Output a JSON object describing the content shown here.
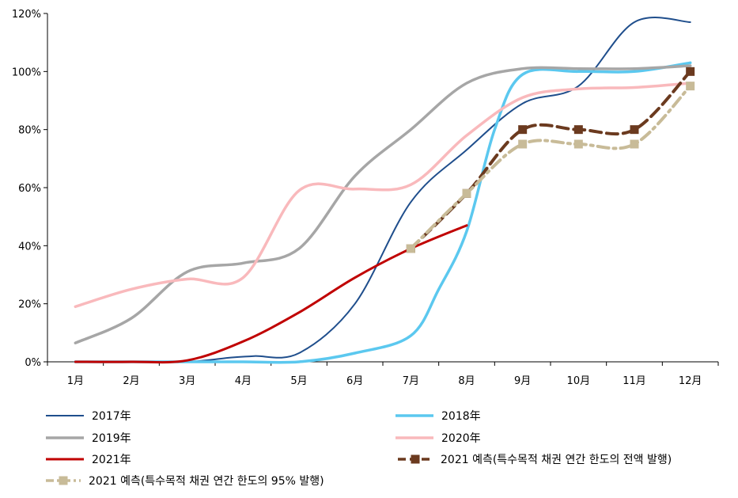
{
  "chart_data": {
    "type": "line",
    "title": "",
    "xlabel": "",
    "ylabel": "",
    "categories": [
      "1月",
      "2月",
      "3月",
      "4月",
      "5月",
      "6月",
      "7月",
      "8月",
      "9月",
      "10月",
      "11月",
      "12月"
    ],
    "y_ticks": [
      "0%",
      "20%",
      "40%",
      "60%",
      "80%",
      "100%",
      "120%"
    ],
    "ylim": [
      0,
      120
    ],
    "grid": false,
    "legend_position": "bottom",
    "series": [
      {
        "name": "2017年",
        "color": "#1f4e8c",
        "style": "solid",
        "width": 2,
        "x": [
          1,
          2,
          3,
          3.8,
          4.2,
          5,
          6,
          7,
          8,
          9,
          10,
          11,
          12
        ],
        "values": [
          0,
          0,
          0,
          1.5,
          2,
          3,
          20,
          55,
          73,
          89,
          95,
          117,
          117
        ]
      },
      {
        "name": "2018年",
        "color": "#5bc8ef",
        "style": "solid",
        "width": 3.5,
        "x": [
          1,
          2,
          3,
          4,
          5,
          6,
          7,
          7.5,
          8,
          8.5,
          9,
          10,
          11,
          12
        ],
        "values": [
          0,
          0,
          0,
          0,
          0,
          3,
          9,
          25,
          45,
          80,
          99,
          100,
          100,
          103
        ]
      },
      {
        "name": "2019年",
        "color": "#a6a6a6",
        "style": "solid",
        "width": 3.5,
        "x": [
          1,
          2,
          3,
          4,
          5,
          6,
          7,
          8,
          9,
          10,
          11,
          12
        ],
        "values": [
          6.5,
          15,
          31,
          34,
          39,
          64,
          80,
          96,
          101,
          101,
          101,
          102
        ]
      },
      {
        "name": "2020年",
        "color": "#f9b9bc",
        "style": "solid",
        "width": 3.5,
        "x": [
          1,
          2,
          3,
          4,
          5,
          6,
          7,
          8,
          9,
          10,
          11,
          12
        ],
        "values": [
          19,
          25,
          28.5,
          29,
          59,
          59.5,
          61,
          78,
          91,
          94,
          94.5,
          96
        ]
      },
      {
        "name": "2021年",
        "color": "#c00000",
        "style": "solid",
        "width": 3,
        "x": [
          1,
          2,
          3,
          4,
          5,
          6,
          7,
          8
        ],
        "values": [
          0,
          0,
          0.5,
          7,
          17,
          29,
          39,
          47
        ]
      },
      {
        "name": "2021 예측(특수목적 채권 연간 한도의 전액 발행)",
        "color": "#6b3a1f",
        "style": "dashed",
        "width": 4,
        "marker": "square",
        "x": [
          7,
          8,
          9,
          10,
          11,
          12
        ],
        "values": [
          39,
          58,
          80,
          80,
          80,
          100
        ]
      },
      {
        "name": "2021 예측(특수목적 채권 연간 한도의 95% 발행)",
        "color": "#c8bb98",
        "style": "dashdot",
        "width": 4,
        "marker": "square",
        "x": [
          7,
          8,
          9,
          10,
          11,
          12
        ],
        "values": [
          39,
          58,
          75,
          75,
          75,
          95
        ]
      }
    ]
  }
}
